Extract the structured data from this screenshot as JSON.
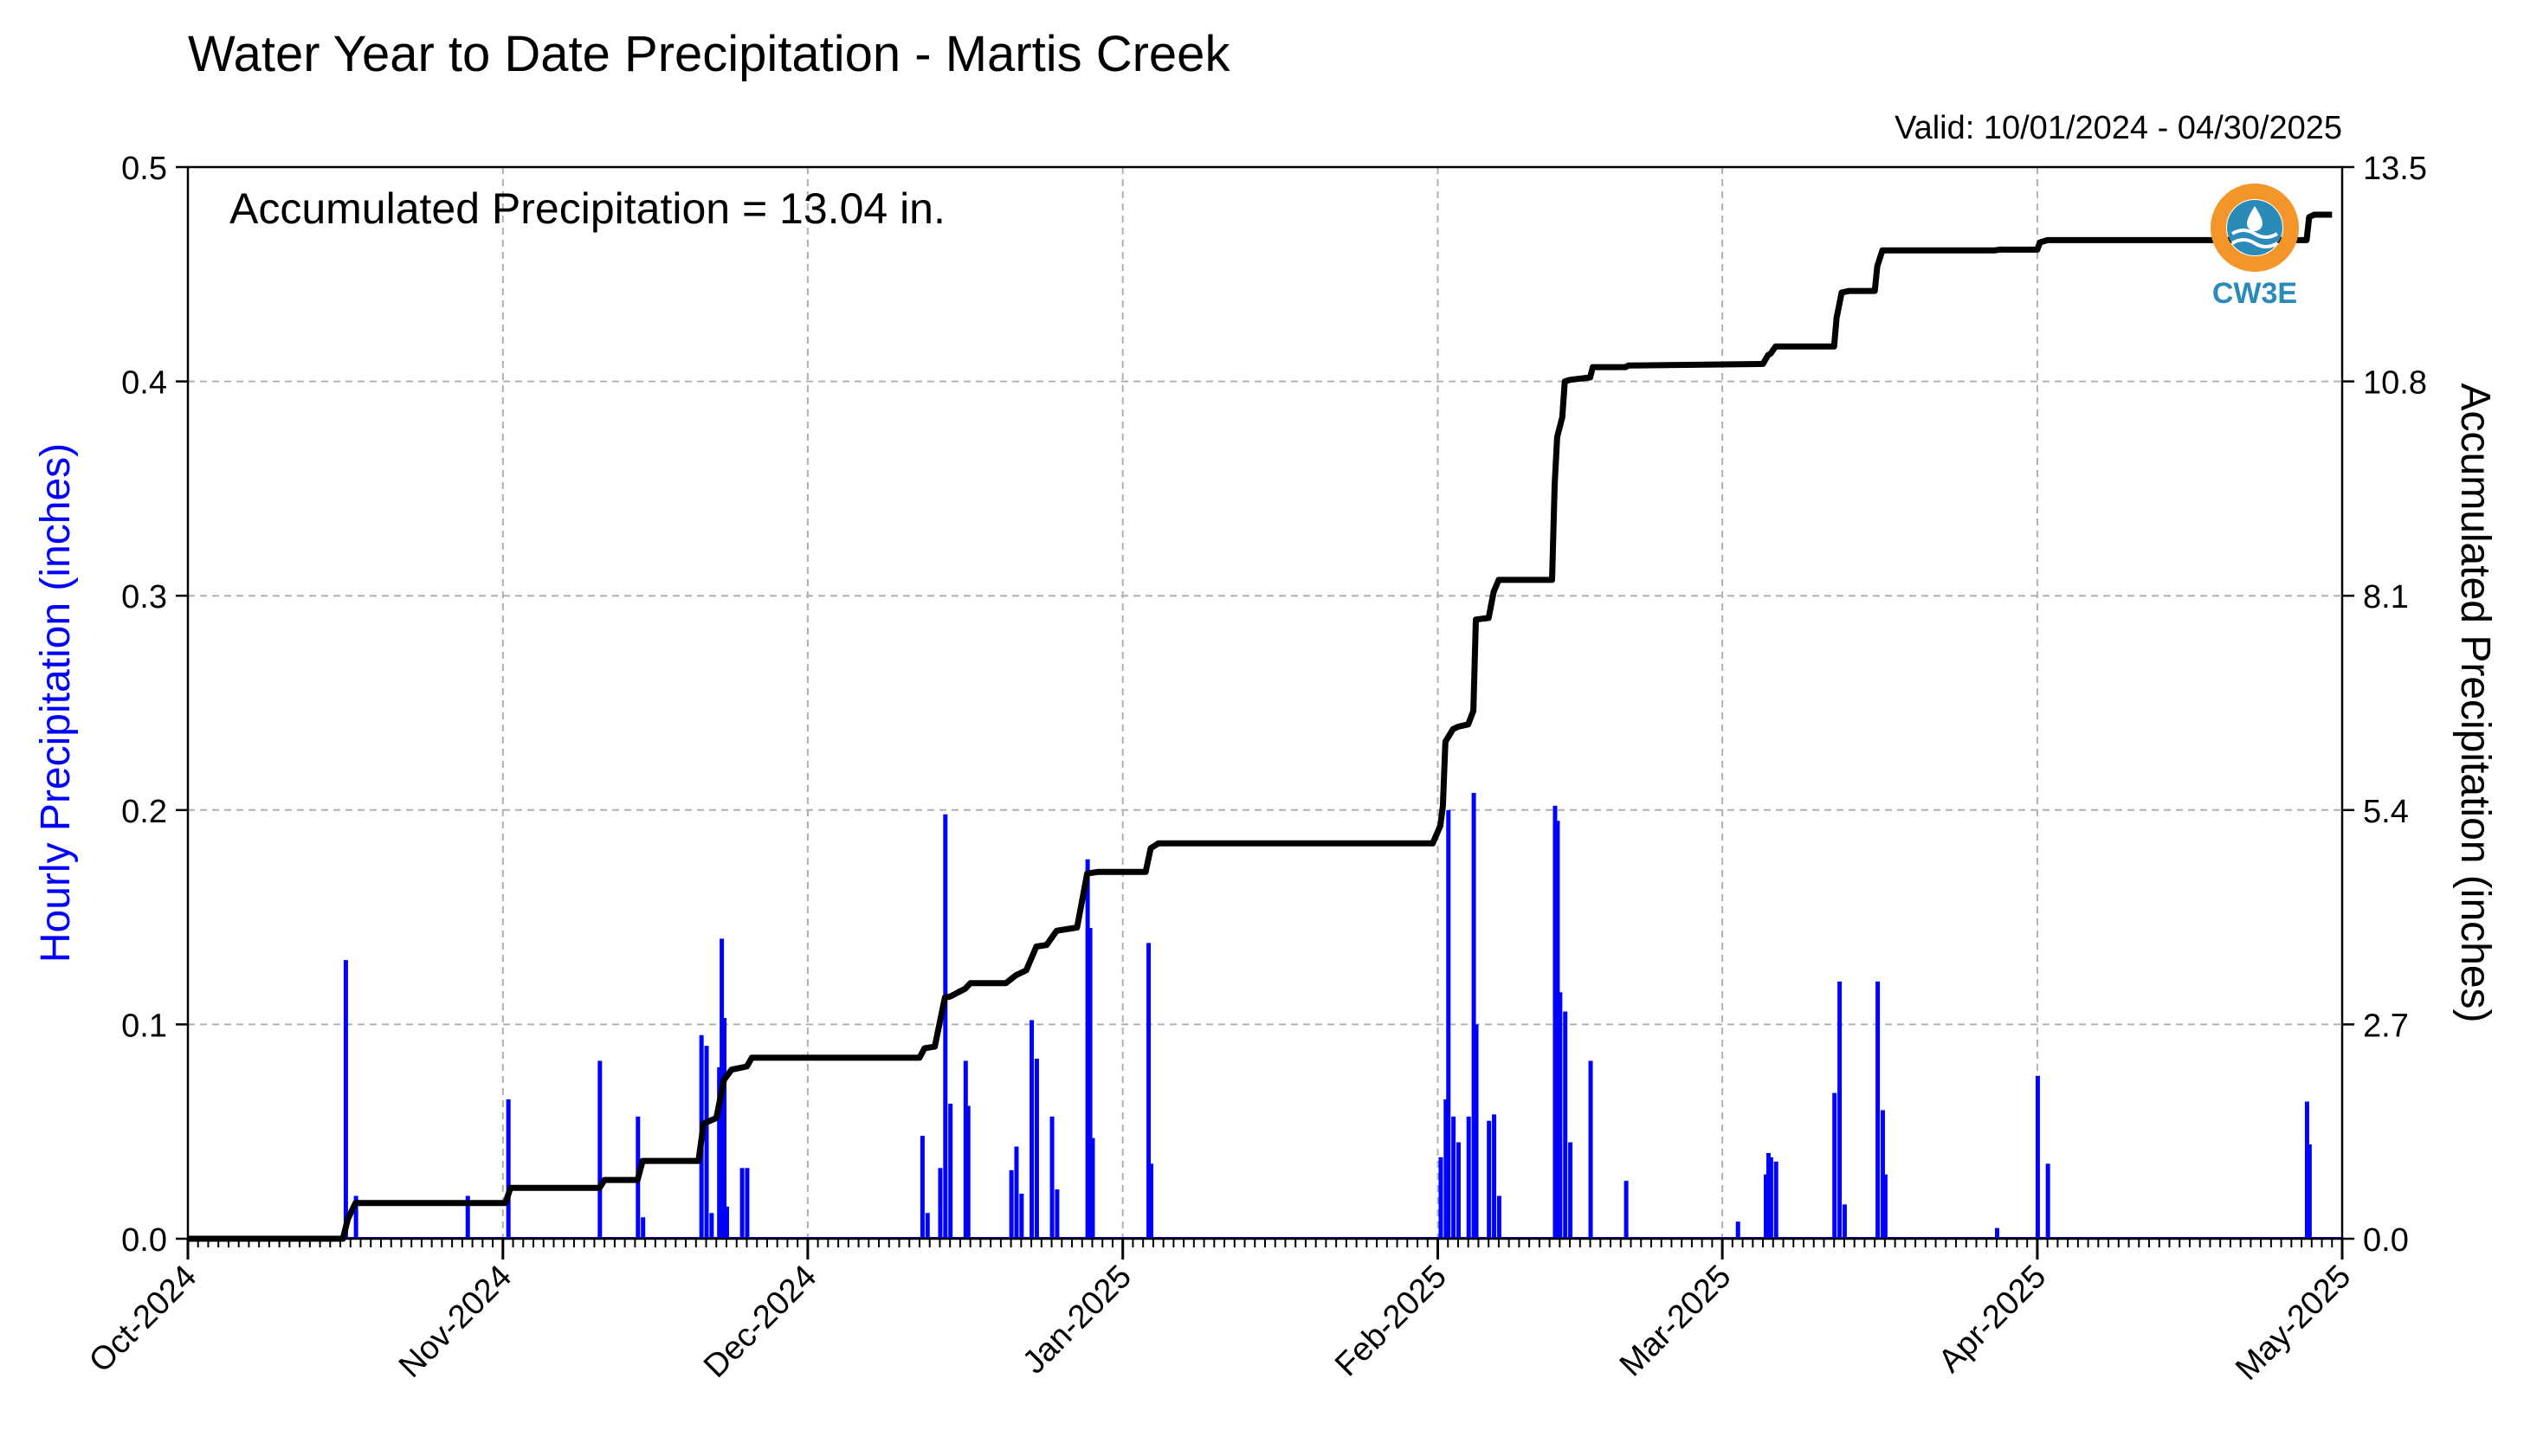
{
  "chart_data": {
    "type": "bar",
    "title": "Water Year to Date Precipitation - Martis Creek",
    "valid_text": "Valid: 10/01/2024 - 04/30/2025",
    "annotation": "Accumulated Precipitation = 13.04 in.",
    "logo_text": "CW3E",
    "ylabel_left": "Hourly Precipitation (inches)",
    "ylabel_right": "Accumulated Precipitation (inches)",
    "ylim_left": [
      0,
      0.5
    ],
    "ylim_right": [
      0,
      13.5
    ],
    "xlim": [
      "2024-10-01",
      "2025-05-01"
    ],
    "left_ticks": [
      "0.0",
      "0.1",
      "0.2",
      "0.3",
      "0.4",
      "0.5"
    ],
    "right_ticks": [
      "0.0",
      "2.7",
      "5.4",
      "8.1",
      "10.8",
      "13.5"
    ],
    "x_ticks": [
      {
        "date": "2024-10-01",
        "label": "Oct-2024"
      },
      {
        "date": "2024-11-01",
        "label": "Nov-2024"
      },
      {
        "date": "2024-12-01",
        "label": "Dec-2024"
      },
      {
        "date": "2025-01-01",
        "label": "Jan-2025"
      },
      {
        "date": "2025-02-01",
        "label": "Feb-2025"
      },
      {
        "date": "2025-03-01",
        "label": "Mar-2025"
      },
      {
        "date": "2025-04-01",
        "label": "Apr-2025"
      },
      {
        "date": "2025-05-01",
        "label": "May-2025"
      }
    ],
    "grid": true,
    "series": [
      {
        "name": "Hourly Precipitation",
        "color": "#0000ff",
        "points": [
          [
            "2024-10-16T12:00",
            0.13
          ],
          [
            "2024-10-17T12:00",
            0.02
          ],
          [
            "2024-10-28T12:00",
            0.02
          ],
          [
            "2024-11-01T12:00",
            0.065
          ],
          [
            "2024-11-10T12:00",
            0.083
          ],
          [
            "2024-11-14T06:00",
            0.057
          ],
          [
            "2024-11-14T18:00",
            0.01
          ],
          [
            "2024-11-20T12:00",
            0.095
          ],
          [
            "2024-11-21T00:00",
            0.09
          ],
          [
            "2024-11-21T12:00",
            0.012
          ],
          [
            "2024-11-22T06:00",
            0.08
          ],
          [
            "2024-11-22T12:00",
            0.14
          ],
          [
            "2024-11-22T18:00",
            0.103
          ],
          [
            "2024-11-23T00:00",
            0.015
          ],
          [
            "2024-11-24T12:00",
            0.033
          ],
          [
            "2024-11-25T00:00",
            0.033
          ],
          [
            "2024-12-12T06:00",
            0.048
          ],
          [
            "2024-12-12T18:00",
            0.012
          ],
          [
            "2024-12-14T00:00",
            0.033
          ],
          [
            "2024-12-14T12:00",
            0.198
          ],
          [
            "2024-12-15T00:00",
            0.063
          ],
          [
            "2024-12-16T12:00",
            0.083
          ],
          [
            "2024-12-16T18:00",
            0.062
          ],
          [
            "2024-12-21T00:00",
            0.032
          ],
          [
            "2024-12-21T12:00",
            0.043
          ],
          [
            "2024-12-22T00:00",
            0.021
          ],
          [
            "2024-12-23T00:00",
            0.102
          ],
          [
            "2024-12-23T12:00",
            0.084
          ],
          [
            "2024-12-25T00:00",
            0.057
          ],
          [
            "2024-12-25T12:00",
            0.023
          ],
          [
            "2024-12-28T12:00",
            0.177
          ],
          [
            "2024-12-28T18:00",
            0.145
          ],
          [
            "2024-12-29T00:00",
            0.047
          ],
          [
            "2025-01-03T12:00",
            0.138
          ],
          [
            "2025-01-03T18:00",
            0.035
          ],
          [
            "2025-02-01T06:00",
            0.038
          ],
          [
            "2025-02-01T18:00",
            0.065
          ],
          [
            "2025-02-02T00:00",
            0.2
          ],
          [
            "2025-02-02T12:00",
            0.057
          ],
          [
            "2025-02-03T00:00",
            0.045
          ],
          [
            "2025-02-04T00:00",
            0.057
          ],
          [
            "2025-02-04T12:00",
            0.208
          ],
          [
            "2025-02-04T18:00",
            0.1
          ],
          [
            "2025-02-06T00:00",
            0.055
          ],
          [
            "2025-02-06T12:00",
            0.058
          ],
          [
            "2025-02-07T00:00",
            0.02
          ],
          [
            "2025-02-12T12:00",
            0.202
          ],
          [
            "2025-02-12T18:00",
            0.195
          ],
          [
            "2025-02-13T00:00",
            0.115
          ],
          [
            "2025-02-13T12:00",
            0.106
          ],
          [
            "2025-02-14T00:00",
            0.045
          ],
          [
            "2025-02-16T00:00",
            0.083
          ],
          [
            "2025-02-19T12:00",
            0.027
          ],
          [
            "2025-03-02T12:00",
            0.008
          ],
          [
            "2025-03-05T06:00",
            0.03
          ],
          [
            "2025-03-05T12:00",
            0.04
          ],
          [
            "2025-03-05T18:00",
            0.038
          ],
          [
            "2025-03-06T06:00",
            0.036
          ],
          [
            "2025-03-12T00:00",
            0.068
          ],
          [
            "2025-03-12T12:00",
            0.12
          ],
          [
            "2025-03-13T00:00",
            0.016
          ],
          [
            "2025-03-16T06:00",
            0.12
          ],
          [
            "2025-03-16T18:00",
            0.06
          ],
          [
            "2025-03-17T00:00",
            0.03
          ],
          [
            "2025-03-28T00:00",
            0.005
          ],
          [
            "2025-04-01T00:00",
            0.076
          ],
          [
            "2025-04-02T00:00",
            0.035
          ],
          [
            "2025-04-27T12:00",
            0.064
          ],
          [
            "2025-04-27T18:00",
            0.044
          ]
        ]
      },
      {
        "name": "Accumulated Precipitation",
        "color": "#000000",
        "points": [
          [
            "2024-10-01",
            0.0
          ],
          [
            "2024-10-16T06:00",
            0.0
          ],
          [
            "2024-10-16T18:00",
            0.25
          ],
          [
            "2024-10-17T12:00",
            0.45
          ],
          [
            "2024-11-01T06:00",
            0.45
          ],
          [
            "2024-11-01T18:00",
            0.64
          ],
          [
            "2024-11-10T12:00",
            0.64
          ],
          [
            "2024-11-11T00:00",
            0.74
          ],
          [
            "2024-11-14T06:00",
            0.74
          ],
          [
            "2024-11-14T18:00",
            0.98
          ],
          [
            "2024-11-20T06:00",
            0.98
          ],
          [
            "2024-11-20T18:00",
            1.45
          ],
          [
            "2024-11-22T00:00",
            1.52
          ],
          [
            "2024-11-22T18:00",
            2.0
          ],
          [
            "2024-11-23T12:00",
            2.13
          ],
          [
            "2024-11-25T00:00",
            2.17
          ],
          [
            "2024-11-25T12:00",
            2.28
          ],
          [
            "2024-12-12T00:00",
            2.28
          ],
          [
            "2024-12-12T12:00",
            2.4
          ],
          [
            "2024-12-13T12:00",
            2.42
          ],
          [
            "2024-12-14T12:00",
            3.04
          ],
          [
            "2024-12-15T00:00",
            3.05
          ],
          [
            "2024-12-16T12:00",
            3.15
          ],
          [
            "2024-12-17T00:00",
            3.22
          ],
          [
            "2024-12-20T12:00",
            3.22
          ],
          [
            "2024-12-21T12:00",
            3.32
          ],
          [
            "2024-12-22T12:00",
            3.38
          ],
          [
            "2024-12-23T12:00",
            3.68
          ],
          [
            "2024-12-24T12:00",
            3.7
          ],
          [
            "2024-12-25T12:00",
            3.88
          ],
          [
            "2024-12-27T12:00",
            3.92
          ],
          [
            "2024-12-28T12:00",
            4.6
          ],
          [
            "2024-12-29T12:00",
            4.62
          ],
          [
            "2025-01-03T06:00",
            4.62
          ],
          [
            "2025-01-03T18:00",
            4.92
          ],
          [
            "2025-01-04T12:00",
            4.98
          ],
          [
            "2025-01-31T12:00",
            4.98
          ],
          [
            "2025-02-01T06:00",
            5.2
          ],
          [
            "2025-02-01T12:00",
            5.45
          ],
          [
            "2025-02-01T18:00",
            6.26
          ],
          [
            "2025-02-02T12:00",
            6.42
          ],
          [
            "2025-02-03T00:00",
            6.45
          ],
          [
            "2025-02-04T00:00",
            6.48
          ],
          [
            "2025-02-04T12:00",
            6.65
          ],
          [
            "2025-02-04T18:00",
            7.8
          ],
          [
            "2025-02-06T00:00",
            7.82
          ],
          [
            "2025-02-06T12:00",
            8.15
          ],
          [
            "2025-02-07T00:00",
            8.3
          ],
          [
            "2025-02-12T06:00",
            8.3
          ],
          [
            "2025-02-12T12:00",
            9.5
          ],
          [
            "2025-02-12T18:00",
            10.1
          ],
          [
            "2025-02-13T06:00",
            10.35
          ],
          [
            "2025-02-13T12:00",
            10.8
          ],
          [
            "2025-02-14T00:00",
            10.82
          ],
          [
            "2025-02-16T00:00",
            10.85
          ],
          [
            "2025-02-16T06:00",
            10.98
          ],
          [
            "2025-02-19T12:00",
            10.98
          ],
          [
            "2025-02-19T18:00",
            11.0
          ],
          [
            "2025-03-05T00:00",
            11.02
          ],
          [
            "2025-03-05T12:00",
            11.13
          ],
          [
            "2025-03-05T18:00",
            11.15
          ],
          [
            "2025-03-06T06:00",
            11.24
          ],
          [
            "2025-03-12T00:00",
            11.24
          ],
          [
            "2025-03-12T06:00",
            11.6
          ],
          [
            "2025-03-12T18:00",
            11.92
          ],
          [
            "2025-03-13T12:00",
            11.94
          ],
          [
            "2025-03-16T00:00",
            11.94
          ],
          [
            "2025-03-16T06:00",
            12.25
          ],
          [
            "2025-03-16T18:00",
            12.45
          ],
          [
            "2025-03-27T18:00",
            12.45
          ],
          [
            "2025-03-28T06:00",
            12.46
          ],
          [
            "2025-04-01T00:00",
            12.46
          ],
          [
            "2025-04-01T06:00",
            12.55
          ],
          [
            "2025-04-02T00:00",
            12.58
          ],
          [
            "2025-04-27T12:00",
            12.58
          ],
          [
            "2025-04-27T18:00",
            12.87
          ],
          [
            "2025-04-28T06:00",
            12.9
          ],
          [
            "2025-04-30T00:00",
            12.9
          ]
        ]
      }
    ]
  }
}
